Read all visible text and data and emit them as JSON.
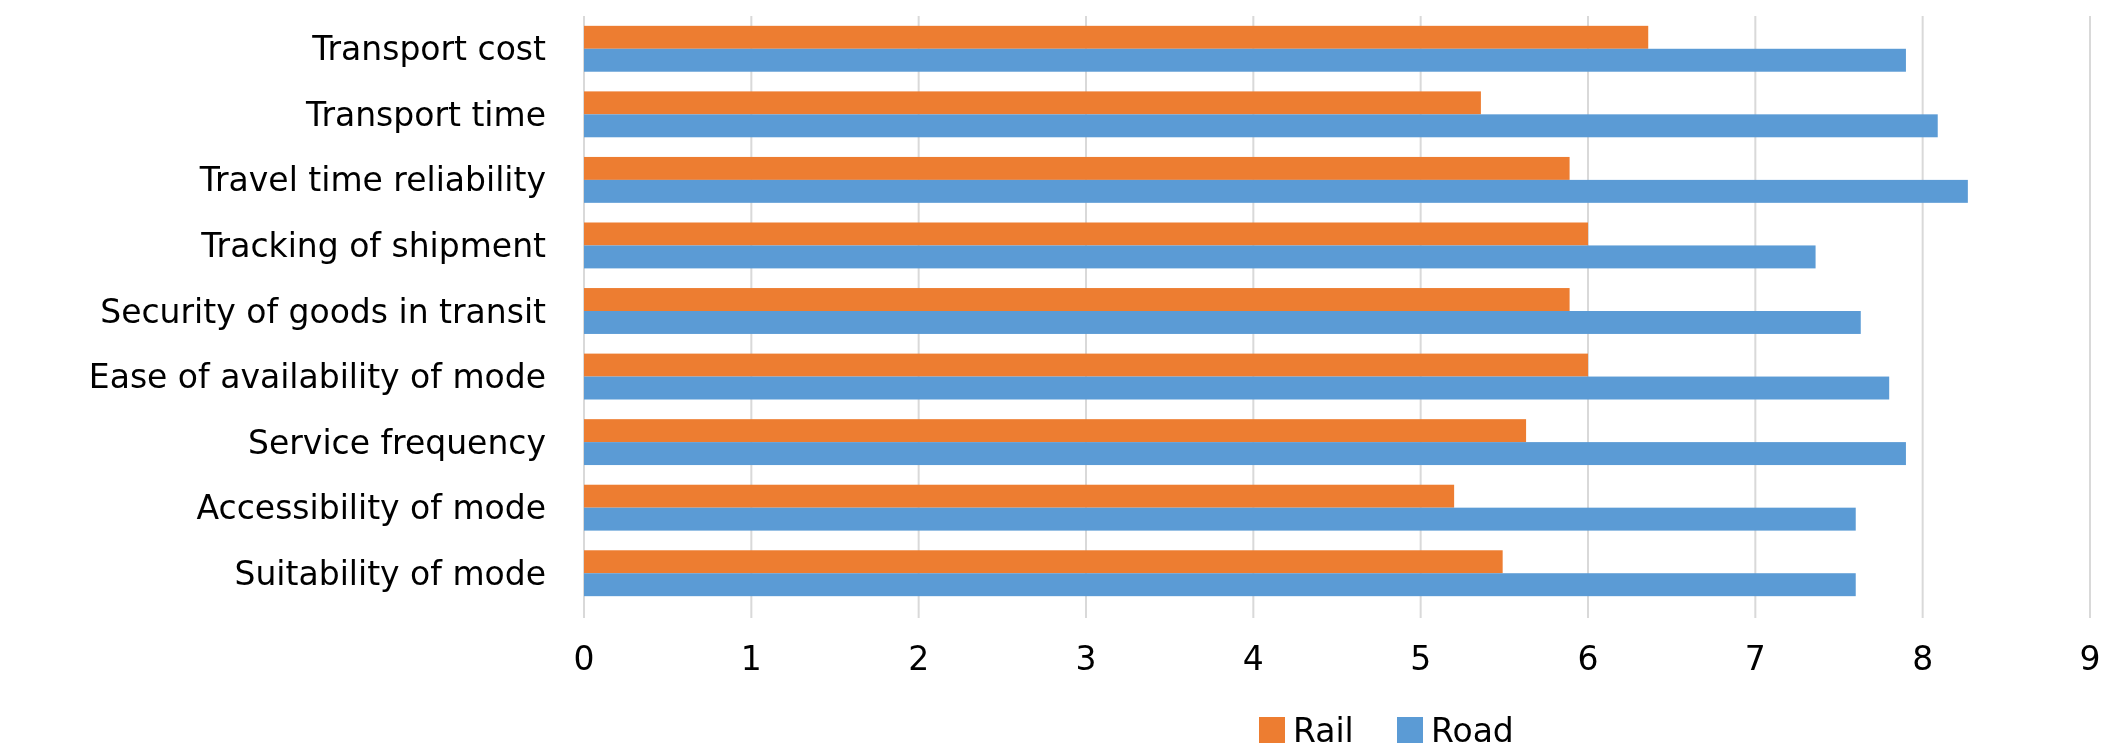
{
  "chart_data": {
    "type": "bar",
    "orientation": "horizontal",
    "categories": [
      "Transport cost",
      "Transport time",
      "Travel time reliability",
      "Tracking of shipment",
      "Security of goods in transit",
      "Ease of availability of mode",
      "Service frequency",
      "Accessibility of mode",
      "Suitability of mode"
    ],
    "series": [
      {
        "name": "Rail",
        "color": "#ed7d31",
        "values": [
          6.36,
          5.36,
          5.89,
          6.0,
          5.89,
          6.0,
          5.63,
          5.2,
          5.49
        ]
      },
      {
        "name": "Road",
        "color": "#5b9bd5",
        "values": [
          7.9,
          8.09,
          8.27,
          7.36,
          7.63,
          7.8,
          7.9,
          7.6,
          7.6
        ]
      }
    ],
    "xlim": [
      0,
      9
    ],
    "xticks": [
      0,
      1,
      2,
      3,
      4,
      5,
      6,
      7,
      8,
      9
    ],
    "grid": "x",
    "legend": "bottom"
  }
}
